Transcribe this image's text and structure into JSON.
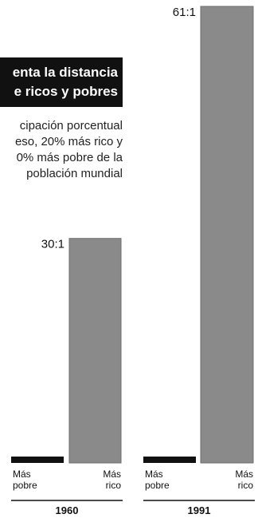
{
  "title_lines": [
    "enta la distancia",
    "e ricos y pobres"
  ],
  "subtitle_lines": [
    "cipación porcentual",
    "eso, 20% más rico y",
    "0% más pobre de la",
    "población mundial"
  ],
  "colors": {
    "bar": "#8a8a8a",
    "bar_edge": "#6f6f6f",
    "poor_bar": "#111111",
    "title_bg": "#111111",
    "title_text": "#ffffff"
  },
  "chart_data": [
    {
      "type": "bar",
      "categories": [
        "Más pobre",
        "Más rico"
      ],
      "values": [
        1,
        30
      ],
      "ratio_label": "30:1",
      "xlabel": "1960",
      "ylim": [
        0,
        61
      ]
    },
    {
      "type": "bar",
      "categories": [
        "Más pobre",
        "Más rico"
      ],
      "values": [
        1,
        61
      ],
      "ratio_label": "61:1",
      "xlabel": "1991",
      "ylim": [
        0,
        61
      ]
    }
  ]
}
